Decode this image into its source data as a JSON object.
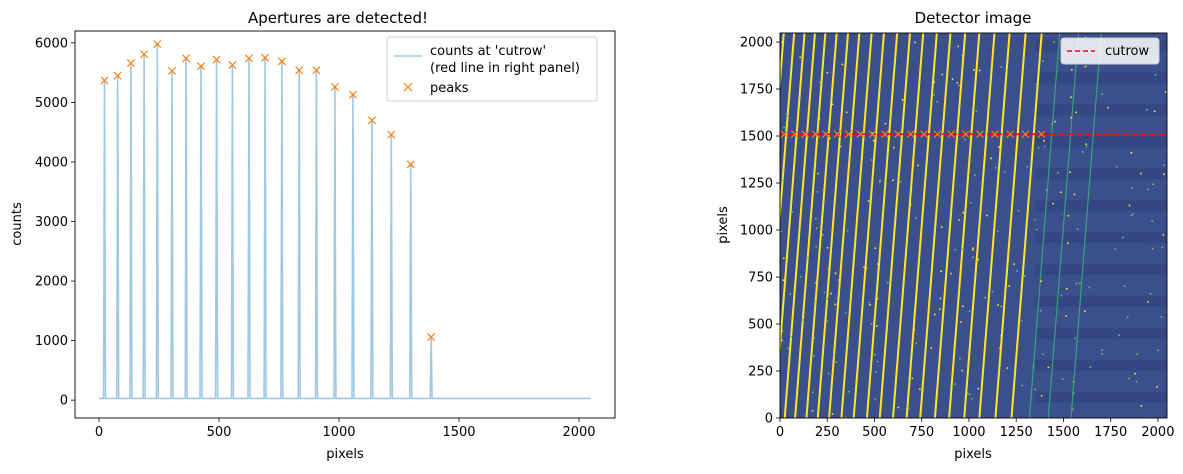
{
  "chart_data": [
    {
      "type": "line",
      "title": "Apertures are detected!",
      "xlabel": "pixels",
      "ylabel": "counts",
      "xlim": [
        -100,
        2150
      ],
      "ylim": [
        -300,
        6200
      ],
      "xticks": [
        0,
        500,
        1000,
        1500,
        2000
      ],
      "yticks": [
        0,
        1000,
        2000,
        3000,
        4000,
        5000,
        6000
      ],
      "legend_position": "top-right",
      "series": [
        {
          "name": "counts at 'cutrow'\n(red line in right panel)",
          "legend_lines": [
            "counts at 'cutrow'",
            "(red line in right panel)"
          ],
          "color": "#9fc8e2",
          "baseline": 30,
          "x_range": [
            0,
            2048
          ],
          "peak_x": [
            23,
            78,
            133,
            188,
            243,
            304,
            363,
            425,
            490,
            556,
            625,
            692,
            762,
            834,
            906,
            983,
            1058,
            1137,
            1218,
            1299,
            1384
          ],
          "peak_y": [
            5370,
            5450,
            5660,
            5810,
            5980,
            5530,
            5740,
            5610,
            5720,
            5630,
            5740,
            5750,
            5690,
            5540,
            5540,
            5260,
            5130,
            4700,
            4460,
            3960,
            1060
          ]
        },
        {
          "name": "peaks",
          "marker": "x",
          "color": "#ff7f0e",
          "x": [
            23,
            78,
            133,
            188,
            243,
            304,
            363,
            425,
            490,
            556,
            625,
            692,
            762,
            834,
            906,
            983,
            1058,
            1137,
            1218,
            1299,
            1384
          ],
          "y": [
            5370,
            5450,
            5660,
            5810,
            5980,
            5530,
            5740,
            5610,
            5720,
            5630,
            5740,
            5750,
            5690,
            5540,
            5540,
            5260,
            5130,
            4700,
            4460,
            3960,
            1060
          ]
        }
      ]
    },
    {
      "type": "heatmap",
      "title": "Detector image",
      "xlabel": "pixels",
      "ylabel": "pixels",
      "xlim": [
        0,
        2048
      ],
      "ylim": [
        0,
        2048
      ],
      "xticks": [
        0,
        250,
        500,
        750,
        1000,
        1250,
        1500,
        1750,
        2000
      ],
      "yticks": [
        0,
        250,
        500,
        750,
        1000,
        1250,
        1500,
        1750,
        2000
      ],
      "colormap": "viridis",
      "background_color": "#3b4f8c",
      "trace_color": "#fde725",
      "legend_position": "top-right",
      "cutrow": {
        "name": "cutrow",
        "y": 1510,
        "color": "#ff0000",
        "style": "dashed"
      },
      "cutrow_markers_x": [
        23,
        78,
        133,
        188,
        243,
        304,
        363,
        425,
        490,
        556,
        625,
        692,
        762,
        834,
        906,
        983,
        1058,
        1137,
        1218,
        1299,
        1384
      ],
      "trace_top_x": [
        20,
        75,
        130,
        185,
        240,
        300,
        360,
        420,
        485,
        550,
        620,
        688,
        758,
        830,
        902,
        980,
        1055,
        1135,
        1215,
        1300,
        1385,
        1480,
        1580,
        1700
      ],
      "trace_slope": -0.08
    }
  ]
}
